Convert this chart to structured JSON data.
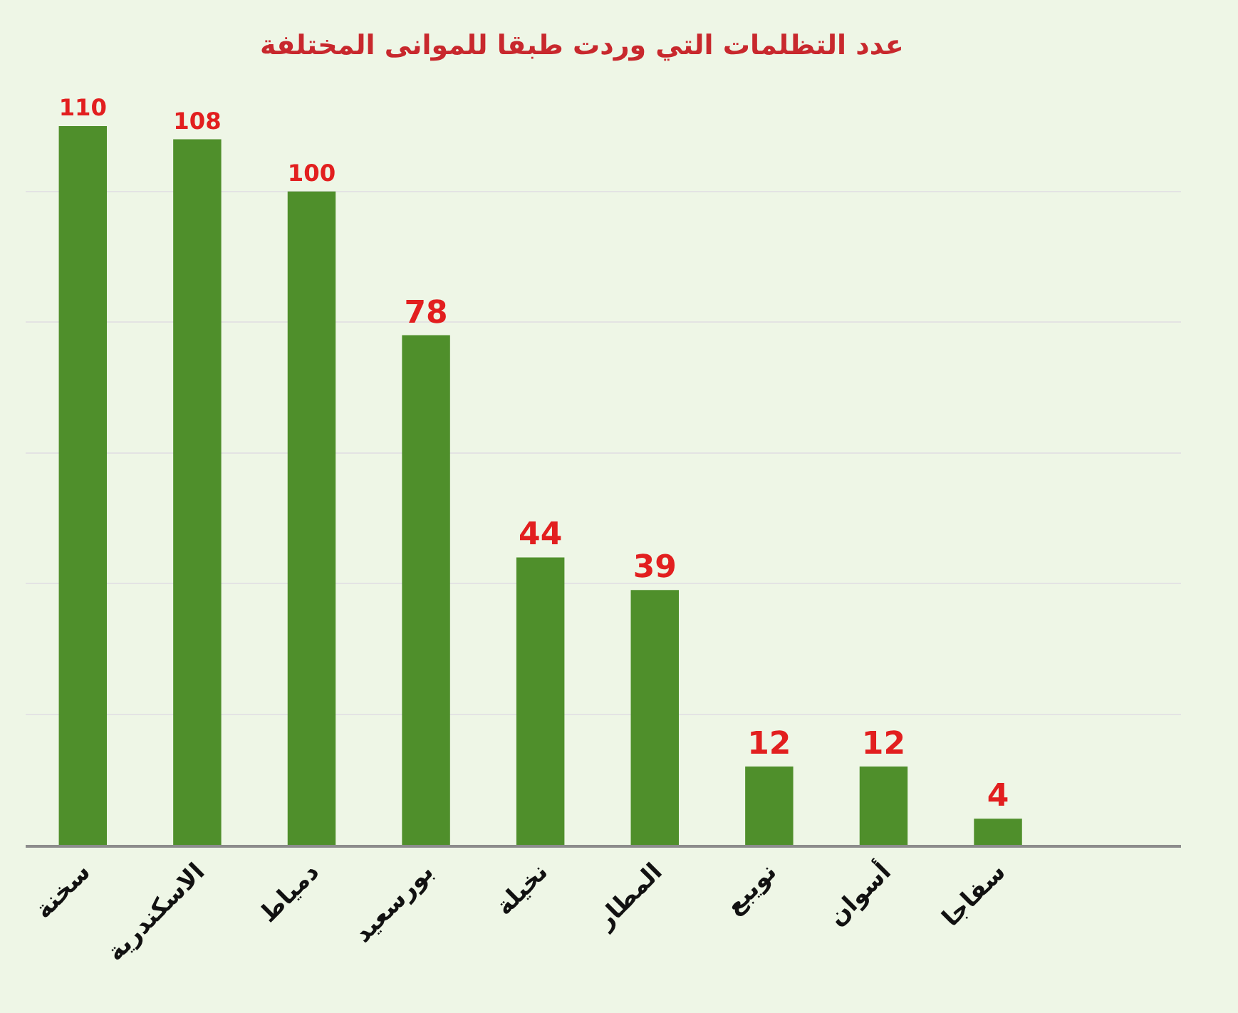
{
  "chart_data": {
    "type": "bar",
    "title": "عدد التظلمات التي وردت طبقا للموانى المختلفة",
    "categories": [
      "سخنة",
      "الاسكندرية",
      "دمياط",
      "بورسعيد",
      "نخيلة",
      "المطار",
      "نويبع",
      "أسوان",
      "سفاجا"
    ],
    "values": [
      110,
      108,
      100,
      78,
      44,
      39,
      12,
      12,
      4
    ],
    "color": "#4f8f2b",
    "data_labels": true,
    "grid": "y",
    "tick_labels": "x"
  }
}
